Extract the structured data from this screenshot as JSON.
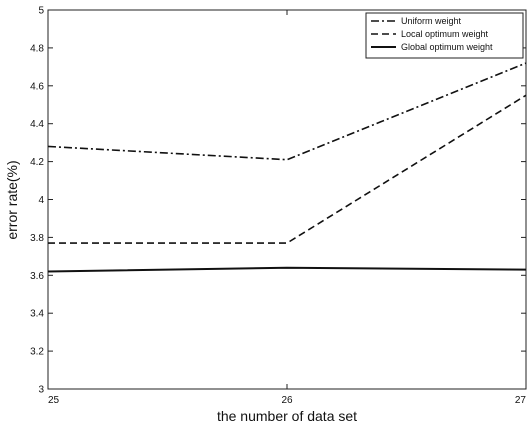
{
  "chart_data": {
    "type": "line",
    "title": "",
    "xlabel": "the number of data set",
    "ylabel": "error rate(%)",
    "x": [
      25,
      26,
      27
    ],
    "x_ticks": [
      "25",
      "26",
      "27"
    ],
    "y_ticks": [
      "3",
      "3.2",
      "3.4",
      "3.6",
      "3.8",
      "4",
      "4.2",
      "4.4",
      "4.6",
      "4.8",
      "5"
    ],
    "xlim": [
      25,
      27
    ],
    "ylim": [
      3,
      5
    ],
    "grid": false,
    "legend_position": "top-right",
    "series": [
      {
        "name": "Uniform weight",
        "style": "dash-dot",
        "values": [
          4.28,
          4.21,
          4.72
        ]
      },
      {
        "name": "Local optimum weight",
        "style": "dashed",
        "values": [
          3.77,
          3.77,
          4.55
        ]
      },
      {
        "name": "Global optimum weight",
        "style": "solid",
        "values": [
          3.62,
          3.64,
          3.63
        ]
      }
    ],
    "line_color": "#111111"
  }
}
